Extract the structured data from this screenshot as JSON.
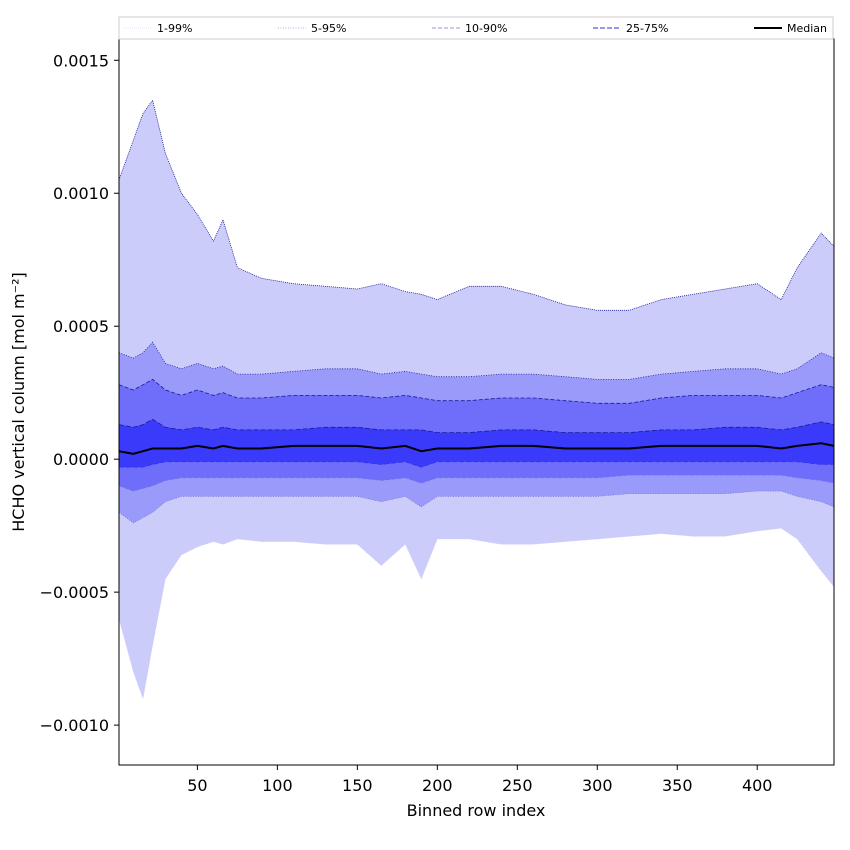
{
  "chart_data": {
    "type": "area",
    "xlabel": "Binned row index",
    "ylabel": "HCHO vertical column [mol m⁻²]",
    "xlim": [
      1,
      448
    ],
    "ylim": [
      -0.00115,
      0.00158
    ],
    "xticks": [
      {
        "value": 50,
        "label": "50"
      },
      {
        "value": 100,
        "label": "100"
      },
      {
        "value": 150,
        "label": "150"
      },
      {
        "value": 200,
        "label": "200"
      },
      {
        "value": 250,
        "label": "250"
      },
      {
        "value": 300,
        "label": "300"
      },
      {
        "value": 350,
        "label": "350"
      },
      {
        "value": 400,
        "label": "400"
      }
    ],
    "yticks": [
      {
        "value": 0.0015,
        "label": "0.0015"
      },
      {
        "value": 0.001,
        "label": "0.0010"
      },
      {
        "value": 0.0005,
        "label": "0.0005"
      },
      {
        "value": 0.0,
        "label": "0.0000"
      },
      {
        "value": -0.0005,
        "label": "−0.0005"
      },
      {
        "value": -0.001,
        "label": "−0.0010"
      }
    ],
    "grid": false,
    "legend_placement": "top",
    "legend": [
      {
        "label": "1-99%",
        "color": "#c8c8f8",
        "dash": "1,1",
        "width": 0.6
      },
      {
        "label": "5-95%",
        "color": "#6868d0",
        "dash": "1,1.5",
        "width": 0.6
      },
      {
        "label": "10-90%",
        "color": "#7070e8",
        "dash": "4,2",
        "width": 0.8
      },
      {
        "label": "25-75%",
        "color": "#3030d8",
        "dash": "5,2",
        "width": 1.0
      },
      {
        "label": "Median",
        "color": "#000000",
        "dash": "",
        "width": 2.0
      }
    ],
    "x": [
      1,
      10,
      16,
      22,
      30,
      40,
      50,
      60,
      66,
      75,
      90,
      110,
      130,
      150,
      165,
      180,
      190,
      200,
      220,
      240,
      260,
      280,
      300,
      320,
      340,
      360,
      380,
      400,
      415,
      425,
      440,
      448
    ],
    "bands": [
      {
        "name": "1-99%",
        "fill": "#ccccfa",
        "upper": [
          0.00105,
          0.0012,
          0.0013,
          0.00135,
          0.00115,
          0.001,
          0.00092,
          0.00082,
          0.0009,
          0.00072,
          0.00068,
          0.00066,
          0.00065,
          0.00064,
          0.00066,
          0.00063,
          0.00062,
          0.0006,
          0.00065,
          0.00065,
          0.00062,
          0.00058,
          0.00056,
          0.00056,
          0.0006,
          0.00062,
          0.00064,
          0.00066,
          0.0006,
          0.00072,
          0.00085,
          0.0008
        ],
        "lower": [
          -0.0006,
          -0.0008,
          -0.0009,
          -0.0007,
          -0.00045,
          -0.00036,
          -0.00033,
          -0.00031,
          -0.00032,
          -0.0003,
          -0.00031,
          -0.00031,
          -0.00032,
          -0.00032,
          -0.0004,
          -0.00032,
          -0.00045,
          -0.0003,
          -0.0003,
          -0.00032,
          -0.00032,
          -0.00031,
          -0.0003,
          -0.00029,
          -0.00028,
          -0.00029,
          -0.00029,
          -0.00027,
          -0.00026,
          -0.0003,
          -0.00042,
          -0.00048
        ]
      },
      {
        "name": "5-95%",
        "fill": "#9a9afa",
        "upper": [
          0.0004,
          0.00038,
          0.0004,
          0.00044,
          0.00036,
          0.00034,
          0.00036,
          0.00034,
          0.00035,
          0.00032,
          0.00032,
          0.00033,
          0.00034,
          0.00034,
          0.00032,
          0.00033,
          0.00032,
          0.00031,
          0.00031,
          0.00032,
          0.00032,
          0.00031,
          0.0003,
          0.0003,
          0.00032,
          0.00033,
          0.00034,
          0.00034,
          0.00032,
          0.00034,
          0.0004,
          0.00038
        ],
        "lower": [
          -0.0002,
          -0.00024,
          -0.00022,
          -0.0002,
          -0.00016,
          -0.00014,
          -0.00014,
          -0.00014,
          -0.00014,
          -0.00014,
          -0.00014,
          -0.00014,
          -0.00014,
          -0.00014,
          -0.00016,
          -0.00014,
          -0.00018,
          -0.00014,
          -0.00014,
          -0.00014,
          -0.00014,
          -0.00014,
          -0.00014,
          -0.00013,
          -0.00013,
          -0.00013,
          -0.00013,
          -0.00012,
          -0.00012,
          -0.00014,
          -0.00016,
          -0.00018
        ]
      },
      {
        "name": "10-90%",
        "fill": "#6e6efa",
        "upper": [
          0.00028,
          0.00026,
          0.00028,
          0.0003,
          0.00026,
          0.00024,
          0.00026,
          0.00024,
          0.00025,
          0.00023,
          0.00023,
          0.00024,
          0.00024,
          0.00024,
          0.00023,
          0.00024,
          0.00023,
          0.00022,
          0.00022,
          0.00023,
          0.00023,
          0.00022,
          0.00021,
          0.00021,
          0.00023,
          0.00024,
          0.00024,
          0.00024,
          0.00023,
          0.00025,
          0.00028,
          0.00027
        ],
        "lower": [
          -0.0001,
          -0.00012,
          -0.00011,
          -0.0001,
          -8e-05,
          -7e-05,
          -7e-05,
          -7e-05,
          -7e-05,
          -7e-05,
          -7e-05,
          -7e-05,
          -7e-05,
          -7e-05,
          -8e-05,
          -7e-05,
          -9e-05,
          -7e-05,
          -7e-05,
          -7e-05,
          -7e-05,
          -7e-05,
          -7e-05,
          -6e-05,
          -6e-05,
          -6e-05,
          -6e-05,
          -6e-05,
          -6e-05,
          -7e-05,
          -8e-05,
          -9e-05
        ]
      },
      {
        "name": "25-75%",
        "fill": "#3a3afa",
        "upper": [
          0.00013,
          0.00012,
          0.00013,
          0.00015,
          0.00012,
          0.00011,
          0.00012,
          0.00011,
          0.00012,
          0.00011,
          0.00011,
          0.00011,
          0.00012,
          0.00012,
          0.00011,
          0.00011,
          0.00011,
          0.0001,
          0.0001,
          0.00011,
          0.00011,
          0.0001,
          0.0001,
          0.0001,
          0.00011,
          0.00011,
          0.00012,
          0.00012,
          0.00011,
          0.00012,
          0.00014,
          0.00013
        ],
        "lower": [
          -3e-05,
          -3e-05,
          -3e-05,
          -2e-05,
          -1e-05,
          -1e-05,
          -1e-05,
          -1e-05,
          -1e-05,
          -1e-05,
          -1e-05,
          -1e-05,
          -1e-05,
          -1e-05,
          -2e-05,
          -1e-05,
          -3e-05,
          -1e-05,
          -1e-05,
          -1e-05,
          -1e-05,
          -1e-05,
          -1e-05,
          -1e-05,
          -1e-05,
          -1e-05,
          -1e-05,
          -1e-05,
          -1e-05,
          -1e-05,
          -2e-05,
          -2e-05
        ]
      }
    ],
    "series": [
      {
        "name": "Median",
        "values": [
          3e-05,
          2e-05,
          3e-05,
          4e-05,
          4e-05,
          4e-05,
          5e-05,
          4e-05,
          5e-05,
          4e-05,
          4e-05,
          5e-05,
          5e-05,
          5e-05,
          4e-05,
          5e-05,
          3e-05,
          4e-05,
          4e-05,
          5e-05,
          5e-05,
          4e-05,
          4e-05,
          4e-05,
          5e-05,
          5e-05,
          5e-05,
          5e-05,
          4e-05,
          5e-05,
          6e-05,
          5e-05
        ]
      }
    ]
  }
}
